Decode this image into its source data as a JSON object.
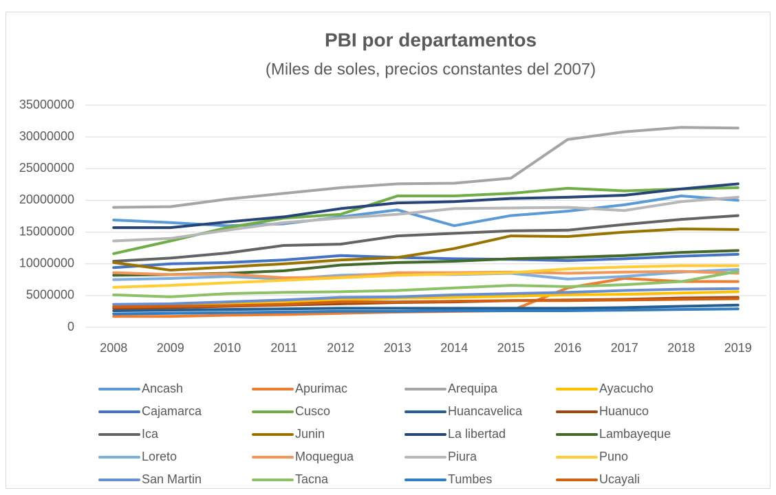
{
  "chart_data": {
    "type": "line",
    "title": "PBI por departamentos",
    "subtitle": "(Miles de soles, precios constantes del 2007)",
    "categories": [
      "2008",
      "2009",
      "2010",
      "2011",
      "2012",
      "2013",
      "2014",
      "2015",
      "2016",
      "2017",
      "2018",
      "2019"
    ],
    "ylim": [
      0,
      35000000
    ],
    "yticks": [
      0,
      5000000,
      10000000,
      15000000,
      20000000,
      25000000,
      30000000,
      35000000
    ],
    "grid": true,
    "legend": "bottom",
    "series": [
      {
        "name": "Ancash",
        "color": "#5B9BD5",
        "values": [
          16900000,
          16500000,
          16000000,
          16300000,
          17400000,
          18500000,
          16000000,
          17600000,
          18300000,
          19300000,
          20700000,
          20000000
        ]
      },
      {
        "name": "Apurimac",
        "color": "#ED7D31",
        "values": [
          1700000,
          1700000,
          1900000,
          2000000,
          2200000,
          2400000,
          2500000,
          2600000,
          6200000,
          7700000,
          7200000,
          7200000
        ]
      },
      {
        "name": "Arequipa",
        "color": "#A5A5A5",
        "values": [
          18900000,
          19000000,
          20200000,
          21100000,
          22000000,
          22600000,
          22700000,
          23500000,
          29600000,
          30800000,
          31500000,
          31400000
        ]
      },
      {
        "name": "Ayacucho",
        "color": "#FFC000",
        "values": [
          3400000,
          3600000,
          3800000,
          4000000,
          4300000,
          4600000,
          4700000,
          4900000,
          5100000,
          5200000,
          5400000,
          5600000
        ]
      },
      {
        "name": "Cajamarca",
        "color": "#4472C4",
        "values": [
          9400000,
          10000000,
          10200000,
          10600000,
          11300000,
          11000000,
          10800000,
          10700000,
          10500000,
          10800000,
          11200000,
          11500000
        ]
      },
      {
        "name": "Cusco",
        "color": "#70AD47",
        "values": [
          11600000,
          13600000,
          15700000,
          17200000,
          17800000,
          20700000,
          20700000,
          21100000,
          21900000,
          21500000,
          21800000,
          22000000
        ]
      },
      {
        "name": "Huancavelica",
        "color": "#255E91",
        "values": [
          2600000,
          2700000,
          2800000,
          2900000,
          3000000,
          3000000,
          3000000,
          3000000,
          3000000,
          3100000,
          3300000,
          3500000
        ]
      },
      {
        "name": "Huanuco",
        "color": "#9E480E",
        "values": [
          3000000,
          3100000,
          3300000,
          3500000,
          3700000,
          3900000,
          4000000,
          4200000,
          4300000,
          4400000,
          4600000,
          4700000
        ]
      },
      {
        "name": "Ica",
        "color": "#636363",
        "values": [
          10400000,
          10900000,
          11700000,
          12900000,
          13100000,
          14400000,
          14800000,
          15200000,
          15300000,
          16200000,
          17000000,
          17600000
        ]
      },
      {
        "name": "Junin",
        "color": "#997300",
        "values": [
          10200000,
          9000000,
          9500000,
          10000000,
          10600000,
          11000000,
          12400000,
          14400000,
          14300000,
          15000000,
          15500000,
          15400000
        ]
      },
      {
        "name": "La libertad",
        "color": "#264478",
        "values": [
          15700000,
          15700000,
          16600000,
          17400000,
          18700000,
          19600000,
          19800000,
          20300000,
          20500000,
          20800000,
          21800000,
          22600000
        ]
      },
      {
        "name": "Lambayeque",
        "color": "#43682B",
        "values": [
          8200000,
          8300000,
          8500000,
          8900000,
          9800000,
          10200000,
          10400000,
          10800000,
          11000000,
          11300000,
          11800000,
          12100000
        ]
      },
      {
        "name": "Loreto",
        "color": "#7CAFDD",
        "values": [
          7500000,
          7700000,
          8000000,
          7600000,
          8200000,
          8400000,
          8300000,
          8500000,
          7600000,
          8000000,
          8700000,
          9100000
        ]
      },
      {
        "name": "Moquegua",
        "color": "#F1975A",
        "values": [
          8600000,
          8300000,
          8400000,
          7800000,
          7900000,
          8600000,
          8600000,
          8700000,
          8500000,
          8700000,
          8800000,
          8500000
        ]
      },
      {
        "name": "Piura",
        "color": "#B7B7B7",
        "values": [
          13600000,
          14000000,
          15300000,
          16500000,
          17200000,
          17800000,
          18700000,
          18800000,
          18900000,
          18400000,
          19800000,
          20500000
        ]
      },
      {
        "name": "Puno",
        "color": "#FFCD33",
        "values": [
          6300000,
          6600000,
          7000000,
          7400000,
          7800000,
          8200000,
          8400000,
          8600000,
          9200000,
          9500000,
          9700000,
          9700000
        ]
      },
      {
        "name": "San Martin",
        "color": "#698ED0",
        "values": [
          3600000,
          3700000,
          4000000,
          4300000,
          4700000,
          4800000,
          5100000,
          5300000,
          5500000,
          5800000,
          6000000,
          6100000
        ]
      },
      {
        "name": "Tacna",
        "color": "#8CC168",
        "values": [
          5100000,
          4800000,
          5300000,
          5500000,
          5600000,
          5800000,
          6200000,
          6600000,
          6400000,
          6700000,
          7200000,
          8800000
        ]
      },
      {
        "name": "Tumbes",
        "color": "#327DC2",
        "values": [
          2100000,
          2200000,
          2300000,
          2400000,
          2500000,
          2500000,
          2600000,
          2600000,
          2600000,
          2700000,
          2800000,
          2900000
        ]
      },
      {
        "name": "Ucayali",
        "color": "#D26012",
        "values": [
          3200000,
          3300000,
          3400000,
          3600000,
          4000000,
          4000000,
          4100000,
          4200000,
          4200000,
          4300000,
          4400000,
          4500000
        ]
      }
    ]
  }
}
